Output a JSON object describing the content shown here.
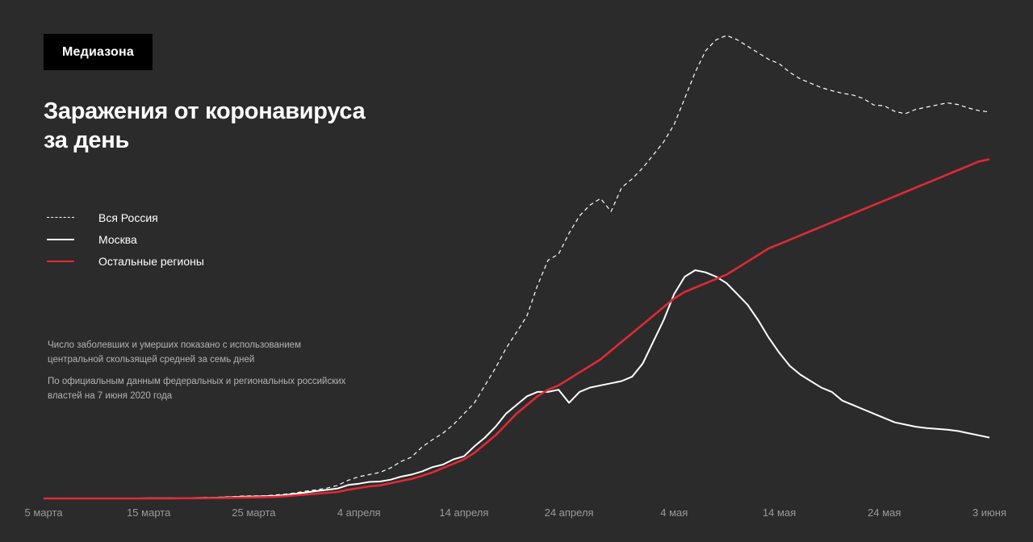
{
  "header": {
    "logo": "Медиазона",
    "title_line1": "Заражения от коронавируса",
    "title_line2": "за день"
  },
  "legend": [
    {
      "label": "Вся Россия",
      "color": "#ffffff",
      "style": "dashed"
    },
    {
      "label": "Москва",
      "color": "#ffffff",
      "style": "solid"
    },
    {
      "label": "Остальные регионы",
      "color": "#e02a35",
      "style": "solid"
    }
  ],
  "notes": {
    "method": "Число заболевших и умерших показано с использованием центральной скользящей средней за семь дней",
    "source": "По официальным данным федеральных и региональных российских властей на 7 июня 2020 года"
  },
  "colors": {
    "background": "#2b2b2b",
    "russia": "#ffffff",
    "moscow": "#ffffff",
    "regions": "#e02a35",
    "tick_text": "#9a9a9a"
  },
  "chart_data": {
    "type": "line",
    "x_start": "2020-03-05",
    "x_ticks": [
      "5 марта",
      "15 марта",
      "25 марта",
      "4 апреля",
      "14 апреля",
      "24 апреля",
      "4 мая",
      "14 мая",
      "24 мая",
      "3 июня"
    ],
    "ylim": [
      0,
      10500
    ],
    "grid": false,
    "legend_position": "left",
    "series": [
      {
        "name": "Вся Россия",
        "values": [
          0,
          0,
          0,
          0,
          0,
          0,
          0,
          0,
          0,
          0,
          5,
          5,
          10,
          15,
          15,
          20,
          25,
          30,
          40,
          55,
          60,
          60,
          80,
          100,
          130,
          170,
          200,
          240,
          300,
          420,
          500,
          550,
          600,
          700,
          850,
          950,
          1180,
          1350,
          1500,
          1700,
          1950,
          2200,
          2600,
          3000,
          3450,
          3820,
          4200,
          4900,
          5480,
          5620,
          6100,
          6500,
          6750,
          6900,
          6600,
          7150,
          7350,
          7600,
          7900,
          8200,
          8600,
          9200,
          9800,
          10300,
          10550,
          10650,
          10550,
          10400,
          10250,
          10100,
          10000,
          9800,
          9650,
          9550,
          9450,
          9380,
          9320,
          9280,
          9200,
          9050,
          9030,
          8900,
          8850,
          8950,
          9000,
          9050,
          9100,
          9060,
          8980,
          8920,
          8890
        ]
      },
      {
        "name": "Москва",
        "values": [
          0,
          0,
          0,
          0,
          0,
          0,
          0,
          0,
          0,
          0,
          5,
          5,
          5,
          10,
          10,
          15,
          15,
          20,
          30,
          40,
          45,
          50,
          60,
          80,
          110,
          140,
          170,
          200,
          230,
          310,
          340,
          380,
          390,
          430,
          500,
          550,
          620,
          720,
          780,
          900,
          970,
          1200,
          1400,
          1650,
          1950,
          2150,
          2350,
          2450,
          2450,
          2500,
          2200,
          2450,
          2550,
          2600,
          2650,
          2700,
          2800,
          3100,
          3600,
          4100,
          4700,
          5100,
          5250,
          5200,
          5100,
          4950,
          4700,
          4450,
          4100,
          3700,
          3350,
          3050,
          2850,
          2700,
          2550,
          2450,
          2250,
          2150,
          2050,
          1950,
          1850,
          1750,
          1700,
          1650,
          1620,
          1600,
          1580,
          1550,
          1500,
          1450,
          1400
        ]
      },
      {
        "name": "Остальные регионы",
        "values": [
          0,
          0,
          0,
          0,
          0,
          0,
          0,
          0,
          0,
          0,
          0,
          0,
          0,
          5,
          5,
          5,
          10,
          10,
          15,
          20,
          25,
          30,
          35,
          50,
          70,
          90,
          110,
          130,
          150,
          200,
          240,
          280,
          300,
          350,
          400,
          450,
          520,
          600,
          700,
          800,
          900,
          1050,
          1250,
          1450,
          1700,
          1950,
          2150,
          2350,
          2500,
          2600,
          2750,
          2900,
          3050,
          3200,
          3400,
          3600,
          3800,
          4000,
          4200,
          4400,
          4600,
          4750,
          4850,
          4950,
          5050,
          5150,
          5300,
          5450,
          5600,
          5750,
          5850,
          5950,
          6050,
          6150,
          6250,
          6350,
          6450,
          6550,
          6650,
          6750,
          6850,
          6950,
          7050,
          7150,
          7250,
          7350,
          7450,
          7550,
          7650,
          7750,
          7800
        ]
      }
    ]
  }
}
